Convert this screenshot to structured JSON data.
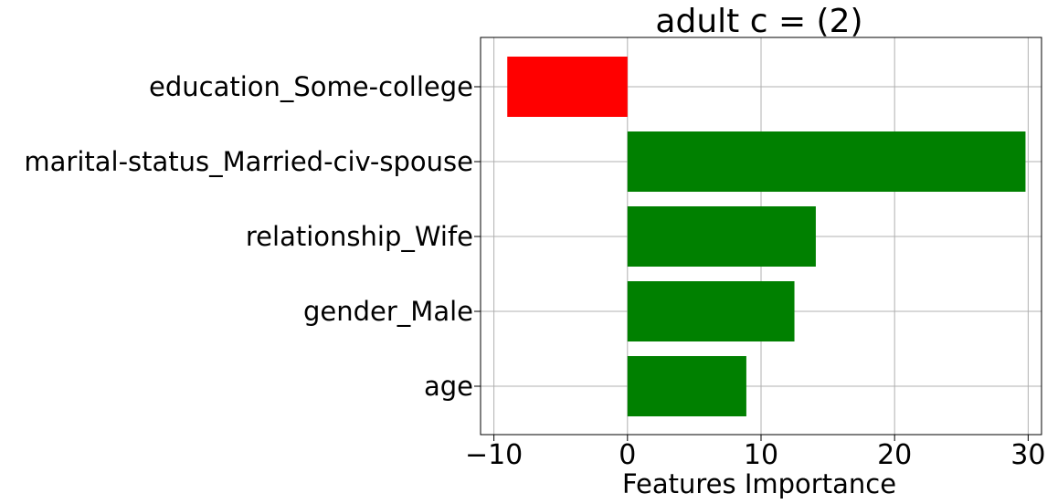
{
  "chart_data": {
    "type": "bar",
    "orientation": "horizontal",
    "title": "adult c = (2)",
    "xlabel": "Features Importance",
    "ylabel": "",
    "categories": [
      "education_Some-college",
      "marital-status_Married-civ-spouse",
      "relationship_Wife",
      "gender_Male",
      "age"
    ],
    "values": [
      -9.0,
      29.8,
      14.1,
      12.5,
      8.9
    ],
    "bar_colors": [
      "#ff0000",
      "#008000",
      "#008000",
      "#008000",
      "#008000"
    ],
    "xlim": [
      -11.0,
      31.0
    ],
    "xticks": [
      -10,
      0,
      10,
      20,
      30
    ],
    "xtick_labels": [
      "−10",
      "0",
      "10",
      "20",
      "30"
    ],
    "grid": true
  }
}
